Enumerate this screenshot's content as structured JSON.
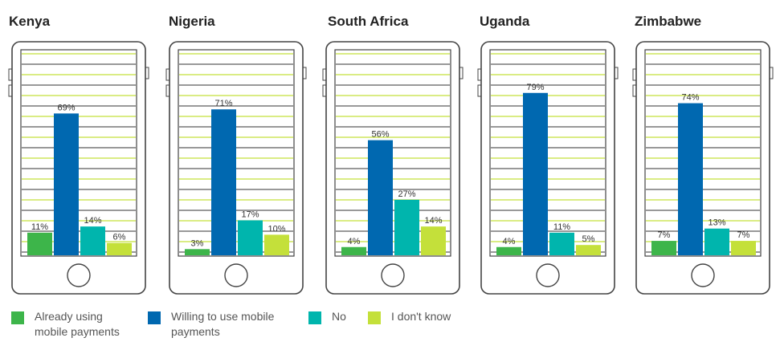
{
  "chart_data": {
    "type": "bar",
    "ylim": [
      0,
      100
    ],
    "grid": true,
    "colors": [
      "#3db54a",
      "#0068b0",
      "#00b5ad",
      "#c4e03a"
    ],
    "series": [
      {
        "name": "Already using mobile payments"
      },
      {
        "name": "Willing to use mobile payments"
      },
      {
        "name": "No"
      },
      {
        "name": "I don't know"
      }
    ],
    "panels": [
      {
        "country": "Kenya",
        "values": [
          11,
          69,
          14,
          6
        ],
        "labels": [
          "11%",
          "69%",
          "14%",
          "6%"
        ]
      },
      {
        "country": "Nigeria",
        "values": [
          3,
          71,
          17,
          10
        ],
        "labels": [
          "3%",
          "71%",
          "17%",
          "10%"
        ]
      },
      {
        "country": "South Africa",
        "values": [
          4,
          56,
          27,
          14
        ],
        "labels": [
          "4%",
          "56%",
          "27%",
          "14%"
        ]
      },
      {
        "country": "Uganda",
        "values": [
          4,
          79,
          11,
          5
        ],
        "labels": [
          "4%",
          "79%",
          "11%",
          "5%"
        ]
      },
      {
        "country": "Zimbabwe",
        "values": [
          7,
          74,
          13,
          7
        ],
        "labels": [
          "7%",
          "74%",
          "13%",
          "7%"
        ]
      }
    ],
    "legend_position": "bottom"
  }
}
